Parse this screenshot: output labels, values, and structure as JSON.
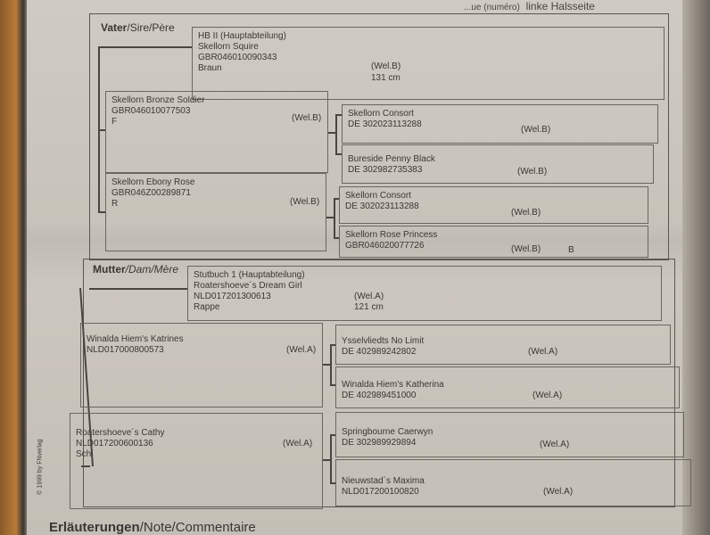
{
  "header": {
    "partial_text": "...ue (numéro)",
    "side": "linke Halsseite"
  },
  "sire_section": {
    "title_bold": "Vater",
    "title_rest": "/Sire/Père",
    "sire": {
      "book": "HB II (Hauptabteilung)",
      "name": "Skellorn Squire",
      "id": "GBR046010090343",
      "color": "Braun",
      "breed": "(Wel.B)",
      "height": "131 cm"
    },
    "parents": [
      {
        "name": "Skellorn Bronze Soldier",
        "id": "GBR046010077503",
        "color": "F",
        "breed": "(Wel.B)"
      },
      {
        "name": "Skellorn Ebony Rose",
        "id": "GBR046Z00289871",
        "color": "R",
        "breed": "(Wel.B)"
      }
    ],
    "grandparents": [
      {
        "name": "Skellorn Consort",
        "id": "DE 302023113288",
        "breed": "(Wel.B)",
        "extra": ""
      },
      {
        "name": "Bureside Penny Black",
        "id": "DE 302982735383",
        "breed": "(Wel.B)",
        "extra": ""
      },
      {
        "name": "Skellorn Consort",
        "id": "DE 302023113288",
        "breed": "(Wel.B)",
        "extra": ""
      },
      {
        "name": "Skellorn Rose Princess",
        "id": "GBR046020077726",
        "breed": "(Wel.B)",
        "extra": "B"
      }
    ]
  },
  "dam_section": {
    "title_bold": "Mutter",
    "title_rest": "/Dam/Mère",
    "dam": {
      "book": "Stutbuch 1 (Hauptabteilung)",
      "name": "Roatershoeve´s Dream Girl",
      "id": "NLD017201300613",
      "color": "Rappe",
      "breed": "(Wel.A)",
      "height": "121 cm"
    },
    "parents": [
      {
        "name": "Winalda Hiem's Katrines",
        "id": "NLD017000800573",
        "color": "",
        "breed": "(Wel.A)"
      },
      {
        "name": "Roatershoeve´s Cathy",
        "id": "NLD017200600136",
        "color": "Schi",
        "breed": "(Wel.A)"
      }
    ],
    "grandparents": [
      {
        "name": "Ysselvliedts No Limit",
        "id": "DE 402989242802",
        "breed": "(Wel.A)"
      },
      {
        "name": "Winalda Hiem's Katherina",
        "id": "DE 402989451000",
        "breed": "(Wel.A)"
      },
      {
        "name": "Springbourne Caerwyn",
        "id": "DE 302989929894",
        "breed": "(Wel.A)"
      },
      {
        "name": "Nieuwstad´s Maxima",
        "id": "NLD017200100820",
        "breed": "(Wel.A)"
      }
    ]
  },
  "copyright": "© 1999 by FNverlag",
  "notes": {
    "title_bold": "Erläuterungen",
    "title_rest": "/Note/Commentaire"
  }
}
